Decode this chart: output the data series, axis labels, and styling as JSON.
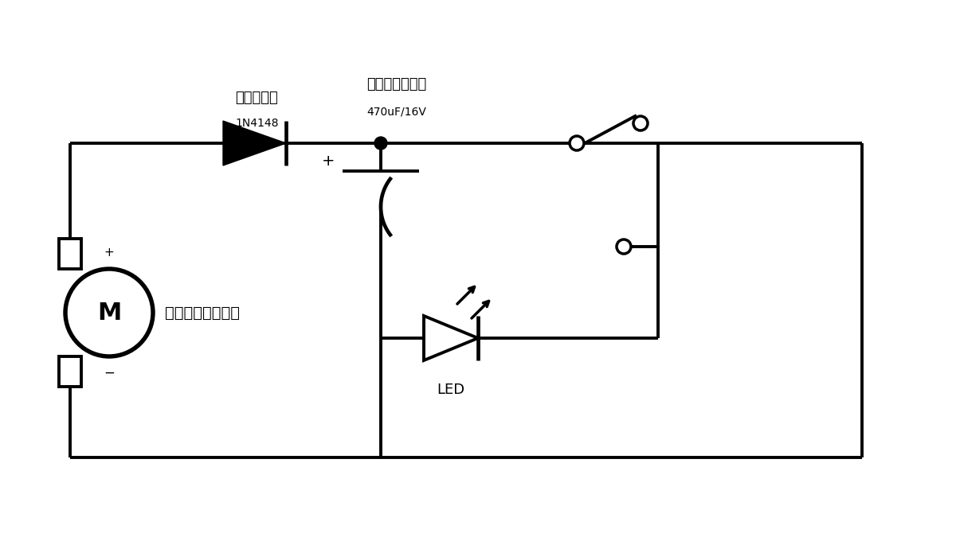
{
  "bg_color": "#ffffff",
  "line_color": "#000000",
  "lw": 2.8,
  "labels": {
    "diode_name": "ダイオード",
    "diode_spec": "1N4148",
    "cap_name": "電解コンデンサ",
    "cap_spec": "470uF/16V",
    "motor_M": "M",
    "motor_name": "水力発電モーター",
    "led": "LED",
    "plus": "+",
    "minus": "−"
  }
}
